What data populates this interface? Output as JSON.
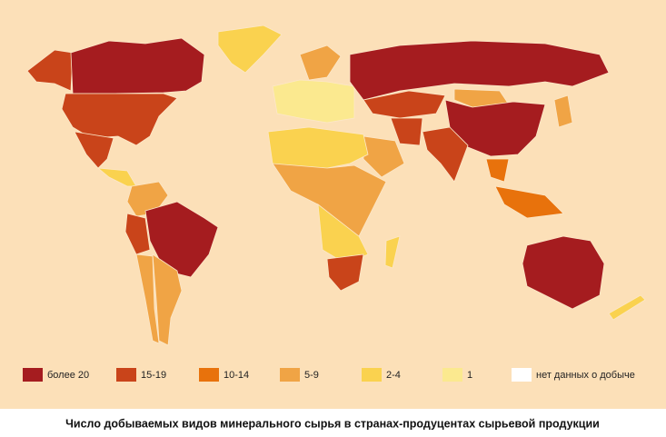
{
  "legend": [
    {
      "label": "более 20",
      "color": "#a51c1f"
    },
    {
      "label": "15-19",
      "color": "#c9441a"
    },
    {
      "label": "10-14",
      "color": "#e8720c"
    },
    {
      "label": "5-9",
      "color": "#f0a445"
    },
    {
      "label": "2-4",
      "color": "#fad24f"
    },
    {
      "label": "1",
      "color": "#fbe98f"
    },
    {
      "label": "нет данных о добыче",
      "color": "#ffffff"
    }
  ],
  "caption": "Число добываемых видов минерального сырья в странах-продуцентах сырьевой продукции"
}
